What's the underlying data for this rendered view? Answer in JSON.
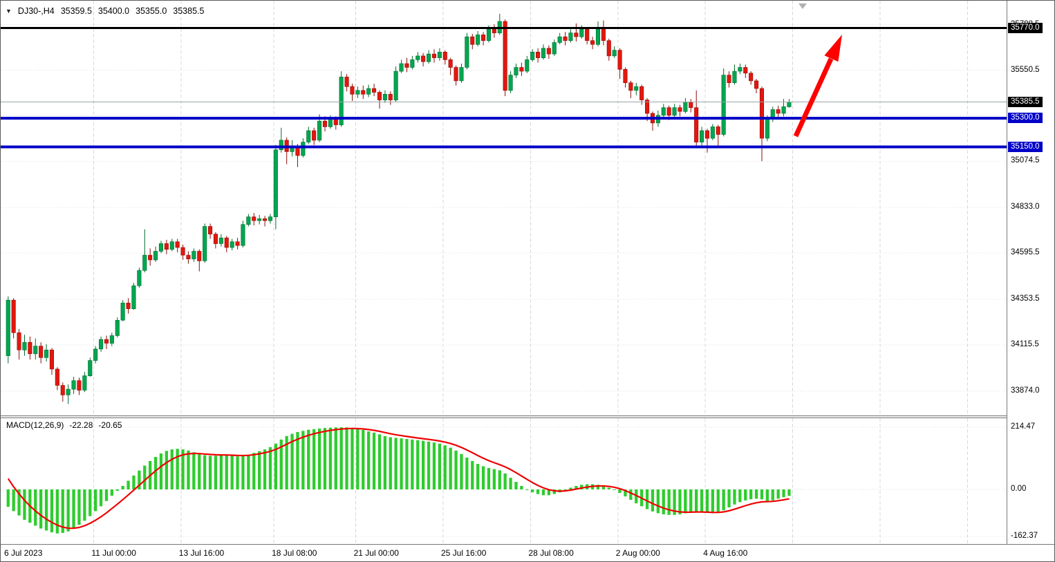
{
  "header": {
    "collapse_icon": "▼",
    "symbol_period": "DJ30-,H4",
    "open": "35359.5",
    "high": "35400.0",
    "low": "35355.0",
    "close": "35385.5"
  },
  "current_price": 35385.5,
  "levels": [
    {
      "price": 35770.0,
      "color": "#000000",
      "width": 3
    },
    {
      "price": 35300.0,
      "color": "#0000C8",
      "width": 4
    },
    {
      "price": 35150.0,
      "color": "#0000C8",
      "width": 4
    }
  ],
  "annotation_arrow": {
    "color": "#FF0000",
    "direction": "up-right"
  },
  "price_axis": {
    "labels": [
      {
        "price": 35788.5,
        "text": "35788.5"
      },
      {
        "price": 35550.5,
        "text": "35550.5"
      },
      {
        "price": 35074.5,
        "text": "35074.5"
      },
      {
        "price": 34833.0,
        "text": "34833.0"
      },
      {
        "price": 34595.5,
        "text": "34595.5"
      },
      {
        "price": 34353.5,
        "text": "34353.5"
      },
      {
        "price": 34115.5,
        "text": "34115.5"
      },
      {
        "price": 33874.0,
        "text": "33874.0"
      }
    ],
    "badges": [
      {
        "price": 35770.0,
        "text": "35770.0",
        "bg": "#000000"
      },
      {
        "price": 35385.5,
        "text": "35385.5",
        "bg": "#000000"
      },
      {
        "price": 35300.0,
        "text": "35300.0",
        "bg": "#0000C8"
      },
      {
        "price": 35150.0,
        "text": "35150.0",
        "bg": "#0000C8"
      }
    ],
    "grid_prices": [
      35788.5,
      35550.5,
      35312.5,
      35074.5,
      34833.0,
      34595.5,
      34353.5,
      34115.5,
      33874.0
    ]
  },
  "macd_panel": {
    "label": "MACD(12,26,9)",
    "main_value": "-22.28",
    "signal_value": "-20.65",
    "axis_labels": [
      {
        "value": 214.47,
        "text": "214.47"
      },
      {
        "value": 0,
        "text": "0.00"
      },
      {
        "value": -162.37,
        "text": "-162.37"
      }
    ]
  },
  "time_axis": {
    "labels": [
      {
        "bar": 0,
        "text": "6 Jul 2023"
      },
      {
        "bar": 16,
        "text": "11 Jul 00:00"
      },
      {
        "bar": 32,
        "text": "13 Jul 16:00"
      },
      {
        "bar": 49,
        "text": "18 Jul 08:00"
      },
      {
        "bar": 64,
        "text": "21 Jul 00:00"
      },
      {
        "bar": 80,
        "text": "25 Jul 16:00"
      },
      {
        "bar": 96,
        "text": "28 Jul 08:00"
      },
      {
        "bar": 112,
        "text": "2 Aug 00:00"
      },
      {
        "bar": 128,
        "text": "4 Aug 16:00"
      }
    ],
    "extra_grid_bars": [
      144,
      160,
      176
    ]
  },
  "chart_data": [
    {
      "type": "candlestick",
      "title": "DJ30- H4",
      "ylim": [
        33820,
        35870
      ],
      "up_color": "#00A651",
      "down_color": "#E3170D",
      "x_labels": [
        "6 Jul 2023",
        "11 Jul 00:00",
        "13 Jul 16:00",
        "18 Jul 08:00",
        "21 Jul 00:00",
        "25 Jul 16:00",
        "28 Jul 08:00",
        "2 Aug 00:00",
        "4 Aug 16:00"
      ],
      "ohlc": [
        [
          34060,
          34370,
          34020,
          34350
        ],
        [
          34350,
          34360,
          34150,
          34180
        ],
        [
          34180,
          34200,
          34040,
          34090
        ],
        [
          34090,
          34170,
          34060,
          34130
        ],
        [
          34130,
          34160,
          34040,
          34070
        ],
        [
          34070,
          34150,
          34040,
          34110
        ],
        [
          34110,
          34130,
          34020,
          34050
        ],
        [
          34050,
          34120,
          34030,
          34090
        ],
        [
          34090,
          34100,
          33960,
          33990
        ],
        [
          33990,
          34000,
          33880,
          33905
        ],
        [
          33905,
          33920,
          33820,
          33855
        ],
        [
          33855,
          33910,
          33808,
          33885
        ],
        [
          33885,
          33950,
          33860,
          33930
        ],
        [
          33930,
          33945,
          33855,
          33880
        ],
        [
          33880,
          33975,
          33870,
          33955
        ],
        [
          33955,
          34050,
          33950,
          34035
        ],
        [
          34035,
          34110,
          34020,
          34095
        ],
        [
          34095,
          34160,
          34080,
          34145
        ],
        [
          34145,
          34165,
          34095,
          34125
        ],
        [
          34125,
          34180,
          34110,
          34165
        ],
        [
          34165,
          34260,
          34155,
          34245
        ],
        [
          34245,
          34350,
          34240,
          34335
        ],
        [
          34335,
          34360,
          34280,
          34305
        ],
        [
          34305,
          34440,
          34300,
          34425
        ],
        [
          34425,
          34520,
          34415,
          34505
        ],
        [
          34505,
          34720,
          34495,
          34585
        ],
        [
          34585,
          34620,
          34530,
          34560
        ],
        [
          34560,
          34630,
          34550,
          34605
        ],
        [
          34605,
          34660,
          34595,
          34645
        ],
        [
          34645,
          34665,
          34590,
          34615
        ],
        [
          34615,
          34670,
          34605,
          34655
        ],
        [
          34655,
          34670,
          34600,
          34625
        ],
        [
          34625,
          34640,
          34560,
          34585
        ],
        [
          34585,
          34605,
          34540,
          34565
        ],
        [
          34565,
          34620,
          34550,
          34605
        ],
        [
          34605,
          34615,
          34500,
          34555
        ],
        [
          34555,
          34750,
          34545,
          34735
        ],
        [
          34735,
          34750,
          34670,
          34695
        ],
        [
          34695,
          34705,
          34620,
          34645
        ],
        [
          34645,
          34695,
          34630,
          34675
        ],
        [
          34675,
          34685,
          34600,
          34625
        ],
        [
          34625,
          34670,
          34610,
          34655
        ],
        [
          34655,
          34675,
          34615,
          34635
        ],
        [
          34635,
          34765,
          34625,
          34745
        ],
        [
          34745,
          34800,
          34735,
          34785
        ],
        [
          34785,
          34805,
          34740,
          34765
        ],
        [
          34765,
          34795,
          34745,
          34775
        ],
        [
          34775,
          34790,
          34735,
          34765
        ],
        [
          34765,
          34800,
          34750,
          34785
        ],
        [
          34785,
          35160,
          34720,
          35135
        ],
        [
          35135,
          35250,
          35120,
          35185
        ],
        [
          35185,
          35200,
          35060,
          35125
        ],
        [
          35125,
          35185,
          35100,
          35155
        ],
        [
          35155,
          35165,
          35045,
          35105
        ],
        [
          35105,
          35195,
          35095,
          35175
        ],
        [
          35175,
          35255,
          35165,
          35235
        ],
        [
          35235,
          35250,
          35160,
          35185
        ],
        [
          35185,
          35320,
          35175,
          35285
        ],
        [
          35285,
          35310,
          35230,
          35255
        ],
        [
          35255,
          35315,
          35245,
          35295
        ],
        [
          35295,
          35310,
          35240,
          35265
        ],
        [
          35265,
          35545,
          35255,
          35515
        ],
        [
          35515,
          35530,
          35440,
          35465
        ],
        [
          35465,
          35480,
          35390,
          35425
        ],
        [
          35425,
          35465,
          35405,
          35445
        ],
        [
          35445,
          35470,
          35400,
          35425
        ],
        [
          35425,
          35475,
          35410,
          35455
        ],
        [
          35455,
          35480,
          35415,
          35435
        ],
        [
          35435,
          35445,
          35350,
          35395
        ],
        [
          35395,
          35445,
          35380,
          35425
        ],
        [
          35425,
          35440,
          35370,
          35395
        ],
        [
          35395,
          35570,
          35385,
          35545
        ],
        [
          35545,
          35605,
          35535,
          35585
        ],
        [
          35585,
          35615,
          35540,
          35565
        ],
        [
          35565,
          35625,
          35555,
          35605
        ],
        [
          35605,
          35645,
          35590,
          35625
        ],
        [
          35625,
          35640,
          35570,
          35595
        ],
        [
          35595,
          35655,
          35585,
          35635
        ],
        [
          35635,
          35660,
          35590,
          35615
        ],
        [
          35615,
          35665,
          35600,
          35645
        ],
        [
          35645,
          35655,
          35580,
          35605
        ],
        [
          35605,
          35615,
          35525,
          35565
        ],
        [
          35565,
          35575,
          35470,
          35495
        ],
        [
          35495,
          35585,
          35485,
          35565
        ],
        [
          35565,
          35745,
          35555,
          35725
        ],
        [
          35725,
          35740,
          35660,
          35685
        ],
        [
          35685,
          35755,
          35675,
          35735
        ],
        [
          35735,
          35750,
          35680,
          35705
        ],
        [
          35705,
          35785,
          35695,
          35765
        ],
        [
          35765,
          35790,
          35720,
          35745
        ],
        [
          35745,
          35845,
          35735,
          35805
        ],
        [
          35805,
          35815,
          35415,
          35445
        ],
        [
          35445,
          35545,
          35430,
          35525
        ],
        [
          35525,
          35585,
          35510,
          35565
        ],
        [
          35565,
          35590,
          35520,
          35545
        ],
        [
          35545,
          35625,
          35535,
          35605
        ],
        [
          35605,
          35660,
          35595,
          35645
        ],
        [
          35645,
          35665,
          35590,
          35615
        ],
        [
          35615,
          35685,
          35605,
          35665
        ],
        [
          35665,
          35680,
          35610,
          35635
        ],
        [
          35635,
          35710,
          35625,
          35695
        ],
        [
          35695,
          35745,
          35685,
          35725
        ],
        [
          35725,
          35750,
          35680,
          35705
        ],
        [
          35705,
          35765,
          35695,
          35745
        ],
        [
          35745,
          35795,
          35700,
          35725
        ],
        [
          35725,
          35785,
          35715,
          35765
        ],
        [
          35765,
          35775,
          35685,
          35705
        ],
        [
          35705,
          35725,
          35660,
          35685
        ],
        [
          35685,
          35805,
          35675,
          35765
        ],
        [
          35765,
          35810,
          35680,
          35705
        ],
        [
          35705,
          35715,
          35600,
          35625
        ],
        [
          35625,
          35675,
          35615,
          35655
        ],
        [
          35655,
          35665,
          35505,
          35555
        ],
        [
          35555,
          35565,
          35460,
          35485
        ],
        [
          35485,
          35495,
          35405,
          35445
        ],
        [
          35445,
          35485,
          35420,
          35465
        ],
        [
          35465,
          35475,
          35370,
          35395
        ],
        [
          35395,
          35405,
          35285,
          35325
        ],
        [
          35325,
          35335,
          35235,
          35275
        ],
        [
          35275,
          35340,
          35255,
          35315
        ],
        [
          35315,
          35375,
          35300,
          35355
        ],
        [
          35355,
          35365,
          35290,
          35315
        ],
        [
          35315,
          35375,
          35305,
          35355
        ],
        [
          35355,
          35370,
          35310,
          35335
        ],
        [
          35335,
          35405,
          35325,
          35385
        ],
        [
          35385,
          35400,
          35330,
          35355
        ],
        [
          35355,
          35445,
          35145,
          35175
        ],
        [
          35175,
          35255,
          35155,
          35235
        ],
        [
          35235,
          35245,
          35120,
          35195
        ],
        [
          35195,
          35270,
          35185,
          35255
        ],
        [
          35255,
          35265,
          35150,
          35215
        ],
        [
          35215,
          35560,
          35205,
          35525
        ],
        [
          35525,
          35545,
          35460,
          35485
        ],
        [
          35485,
          35580,
          35475,
          35545
        ],
        [
          35545,
          35585,
          35530,
          35565
        ],
        [
          35565,
          35580,
          35510,
          35535
        ],
        [
          35535,
          35545,
          35475,
          35495
        ],
        [
          35495,
          35505,
          35430,
          35455
        ],
        [
          35455,
          35465,
          35075,
          35195
        ],
        [
          35195,
          35315,
          35180,
          35295
        ],
        [
          35295,
          35360,
          35280,
          35345
        ],
        [
          35345,
          35365,
          35300,
          35325
        ],
        [
          35325,
          35400,
          35310,
          35360
        ],
        [
          35359.5,
          35400.0,
          35355.0,
          35385.5
        ]
      ]
    },
    {
      "type": "bar",
      "name": "MACD histogram with signal line",
      "ylim": [
        -162.37,
        214.47
      ],
      "bar_color": "#2ECC2E",
      "signal_color": "#F00000",
      "signal_seed": 70,
      "values": [
        -60,
        -75,
        -90,
        -105,
        -115,
        -125,
        -135,
        -142,
        -148,
        -152,
        -150,
        -145,
        -135,
        -122,
        -108,
        -92,
        -75,
        -58,
        -40,
        -22,
        -5,
        12,
        30,
        48,
        65,
        82,
        98,
        112,
        124,
        133,
        138,
        140,
        138,
        134,
        128,
        122,
        118,
        116,
        116,
        118,
        118,
        116,
        114,
        116,
        120,
        126,
        132,
        138,
        146,
        158,
        172,
        184,
        192,
        198,
        202,
        206,
        208,
        210,
        212,
        213,
        214,
        214.47,
        214,
        212,
        209,
        205,
        200,
        196,
        190,
        184,
        180,
        178,
        176,
        174,
        172,
        170,
        168,
        165,
        162,
        158,
        152,
        144,
        134,
        122,
        110,
        98,
        88,
        80,
        74,
        70,
        66,
        55,
        40,
        26,
        12,
        0,
        -10,
        -16,
        -20,
        -20,
        -16,
        -10,
        -2,
        6,
        12,
        16,
        18,
        18,
        16,
        12,
        6,
        -2,
        -12,
        -24,
        -36,
        -48,
        -58,
        -68,
        -76,
        -82,
        -86,
        -88,
        -88,
        -86,
        -82,
        -78,
        -76,
        -78,
        -80,
        -82,
        -80,
        -72,
        -62,
        -52,
        -44,
        -38,
        -34,
        -32,
        -34,
        -40,
        -38,
        -32,
        -27,
        -22.28
      ]
    }
  ]
}
